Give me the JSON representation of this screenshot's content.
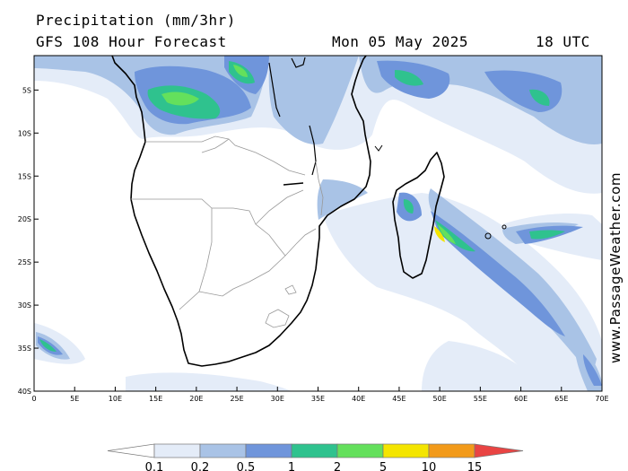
{
  "header": {
    "title": "Precipitation (mm/3hr)",
    "model": "GFS 108 Hour Forecast",
    "date": "Mon 05 May 2025",
    "time": "18 UTC"
  },
  "watermark": "www.PassageWeather.com",
  "map": {
    "projection": "lat-lon",
    "lon_range": [
      0,
      70
    ],
    "lat_range": [
      -40,
      -1
    ],
    "lat_ticks": [
      {
        "value": -5,
        "label": "5S"
      },
      {
        "value": -10,
        "label": "10S"
      },
      {
        "value": -15,
        "label": "15S"
      },
      {
        "value": -20,
        "label": "20S"
      },
      {
        "value": -25,
        "label": "25S"
      },
      {
        "value": -30,
        "label": "30S"
      },
      {
        "value": -35,
        "label": "35S"
      },
      {
        "value": -40,
        "label": "40S"
      }
    ],
    "lon_ticks": [
      {
        "value": 0,
        "label": "0"
      },
      {
        "value": 5,
        "label": "5E"
      },
      {
        "value": 10,
        "label": "10E"
      },
      {
        "value": 15,
        "label": "15E"
      },
      {
        "value": 20,
        "label": "20E"
      },
      {
        "value": 25,
        "label": "25E"
      },
      {
        "value": 30,
        "label": "30E"
      },
      {
        "value": 35,
        "label": "35E"
      },
      {
        "value": 40,
        "label": "40E"
      },
      {
        "value": 45,
        "label": "45E"
      },
      {
        "value": 50,
        "label": "50E"
      },
      {
        "value": 55,
        "label": "55E"
      },
      {
        "value": 60,
        "label": "60E"
      },
      {
        "value": 65,
        "label": "65E"
      },
      {
        "value": 70,
        "label": "70E"
      }
    ]
  },
  "legend": {
    "bins": [
      {
        "color": "#e4ecf8"
      },
      {
        "color": "#a9c3e6"
      },
      {
        "color": "#6f95db"
      },
      {
        "color": "#2fc28e"
      },
      {
        "color": "#64e05c"
      },
      {
        "color": "#f4e500"
      },
      {
        "color": "#f29a1a"
      },
      {
        "color": "#e94443"
      }
    ],
    "labels": [
      "0.1",
      "0.2",
      "0.5",
      "1",
      "2",
      "5",
      "10",
      "15"
    ]
  },
  "colors": {
    "light_blue": "#e4ecf8",
    "pale_blue": "#a9c3e6",
    "mid_blue": "#6f95db",
    "teal": "#2fc28e",
    "green": "#64e05c",
    "yellow": "#f4e500",
    "orange": "#f29a1a",
    "red": "#e94443",
    "coast": "#000000",
    "border": "#999999"
  }
}
